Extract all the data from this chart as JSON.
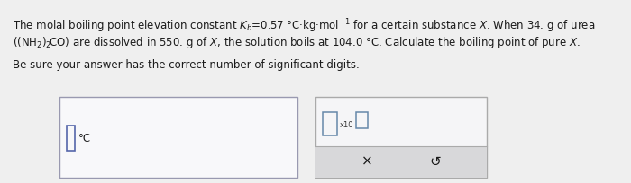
{
  "bg_color": "#efefef",
  "text_color": "#1a1a1a",
  "line1": "The molal boiling point elevation constant $K_b$=0.57 °C·kg·mol$^{-1}$ for a certain substance $X$. When 34. g of urea",
  "line2": "$\\left(\\left(\\mathrm{NH}_2\\right)_2\\!\\mathrm{CO}\\right)$ are dissolved in 550. g of $X$, the solution boils at 104.0 °C. Calculate the boiling point of pure $X$.",
  "line3": "Be sure your answer has the correct number of significant digits.",
  "input_box_color": "#f8f8fa",
  "input_box_border": "#9999b0",
  "input_cursor_color": "#5566aa",
  "degree_label": "°C",
  "panel_bg": "#d8d8da",
  "panel_border": "#aaaaaa",
  "panel_inner_bg": "#f5f5f7",
  "small_sq_color": "#6688aa",
  "x10_color": "#333333"
}
